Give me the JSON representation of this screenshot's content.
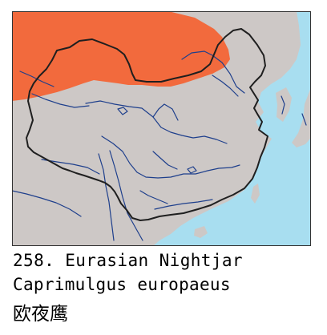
{
  "map": {
    "colors": {
      "sea": "#a8def0",
      "land": "#cdc8c6",
      "range": "#f26a3d",
      "rivers": "#1e3f8c",
      "border": "#1f1f1f",
      "frame": "#333333"
    }
  },
  "caption": {
    "number_and_name": "258. Eurasian Nightjar",
    "latin_name": "Caprimulgus europaeus",
    "chinese_name": "欧夜鹰"
  }
}
